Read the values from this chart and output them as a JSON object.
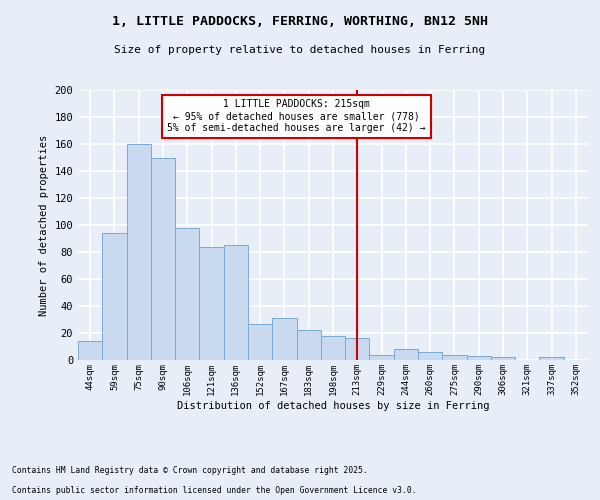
{
  "title_line1": "1, LITTLE PADDOCKS, FERRING, WORTHING, BN12 5NH",
  "title_line2": "Size of property relative to detached houses in Ferring",
  "categories": [
    "44sqm",
    "59sqm",
    "75sqm",
    "90sqm",
    "106sqm",
    "121sqm",
    "136sqm",
    "152sqm",
    "167sqm",
    "183sqm",
    "198sqm",
    "213sqm",
    "229sqm",
    "244sqm",
    "260sqm",
    "275sqm",
    "290sqm",
    "306sqm",
    "321sqm",
    "337sqm",
    "352sqm"
  ],
  "values": [
    14,
    94,
    160,
    150,
    98,
    84,
    85,
    27,
    31,
    22,
    18,
    16,
    4,
    8,
    6,
    4,
    3,
    2,
    0,
    2,
    0
  ],
  "bar_color": "#c9d9f0",
  "bar_edge_color": "#7aaad0",
  "background_color": "#e8eef8",
  "grid_color": "#ffffff",
  "ylabel": "Number of detached properties",
  "xlabel": "Distribution of detached houses by size in Ferring",
  "vline_x_index": 11,
  "vline_color": "#cc0000",
  "annotation_text": "1 LITTLE PADDOCKS: 215sqm\n← 95% of detached houses are smaller (778)\n5% of semi-detached houses are larger (42) →",
  "annotation_box_color": "#ffffff",
  "annotation_box_edge": "#cc0000",
  "footnote1": "Contains HM Land Registry data © Crown copyright and database right 2025.",
  "footnote2": "Contains public sector information licensed under the Open Government Licence v3.0.",
  "ylim": [
    0,
    200
  ],
  "yticks": [
    0,
    20,
    40,
    60,
    80,
    100,
    120,
    140,
    160,
    180,
    200
  ]
}
